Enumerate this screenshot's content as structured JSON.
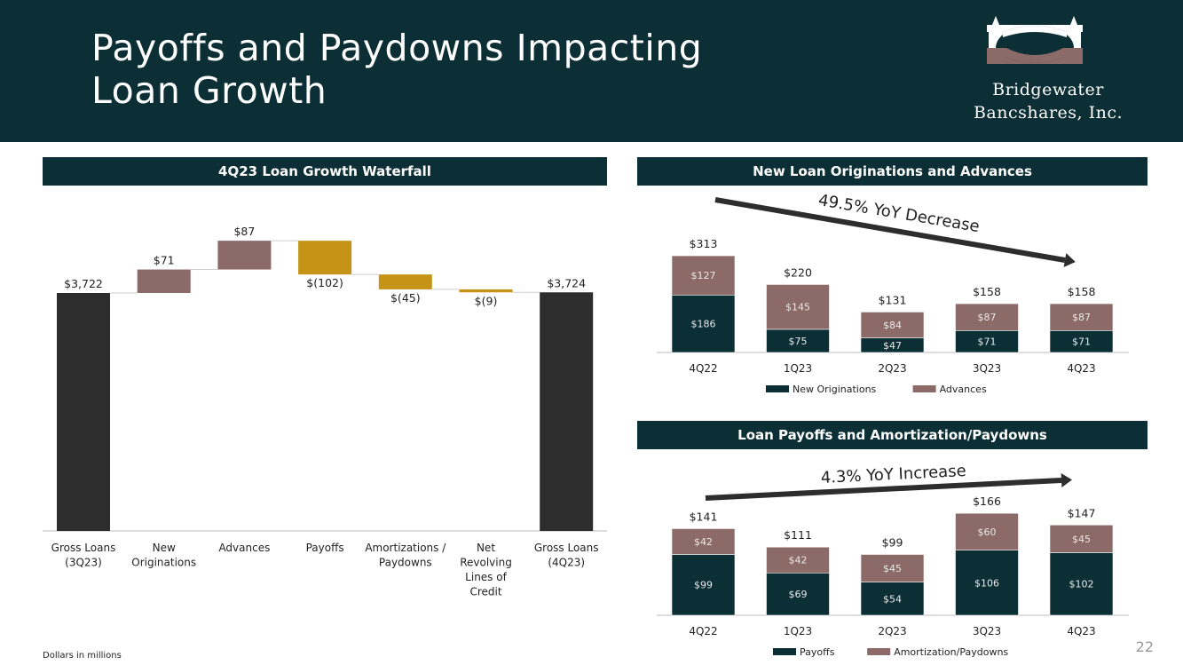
{
  "title_line1": "Payoffs and Paydowns Impacting",
  "title_line2": "Loan Growth",
  "logo": {
    "line1": "Bridgewater",
    "line2": "Bancshares, Inc."
  },
  "footnote": "Dollars in millions",
  "page_number": "22",
  "colors": {
    "navy": "#0c2f36",
    "mauve": "#8c6a67",
    "gold": "#c59316",
    "charcoal": "#2d2d2d"
  },
  "chart_data": [
    {
      "type": "waterfall",
      "title": "4Q23 Loan Growth Waterfall",
      "units": "Dollars in millions",
      "categories": [
        [
          "Gross Loans",
          "(3Q23)"
        ],
        [
          "New",
          "Originations"
        ],
        [
          "Advances"
        ],
        [
          "Payoffs"
        ],
        [
          "Amortizations /",
          "Paydowns"
        ],
        [
          "Net",
          "Revolving",
          "Lines of",
          "Credit"
        ],
        [
          "Gross Loans",
          "(4Q23)"
        ]
      ],
      "steps": [
        {
          "kind": "total",
          "value": 3722,
          "label": "$3,722",
          "color": "charcoal"
        },
        {
          "kind": "delta",
          "value": 71,
          "label": "$71",
          "color": "mauve"
        },
        {
          "kind": "delta",
          "value": 87,
          "label": "$87",
          "color": "mauve"
        },
        {
          "kind": "delta",
          "value": -102,
          "label": "$(102)",
          "color": "gold"
        },
        {
          "kind": "delta",
          "value": -45,
          "label": "$(45)",
          "color": "gold"
        },
        {
          "kind": "delta",
          "value": -9,
          "label": "$(9)",
          "color": "gold"
        },
        {
          "kind": "total",
          "value": 3724,
          "label": "$3,724",
          "color": "charcoal"
        }
      ]
    },
    {
      "type": "bar",
      "stacked": true,
      "title": "New Loan Originations and Advances",
      "annotation": "49.5% YoY Decrease",
      "categories": [
        "4Q22",
        "1Q23",
        "2Q23",
        "3Q23",
        "4Q23"
      ],
      "series": [
        {
          "name": "New Originations",
          "values": [
            186,
            75,
            47,
            71,
            71
          ],
          "labels": [
            "$186",
            "$75",
            "$47",
            "$71",
            "$71"
          ],
          "color": "navy"
        },
        {
          "name": "Advances",
          "values": [
            127,
            145,
            84,
            87,
            87
          ],
          "labels": [
            "$127",
            "$145",
            "$84",
            "$87",
            "$87"
          ],
          "color": "mauve"
        }
      ],
      "totals": [
        313,
        220,
        131,
        158,
        158
      ],
      "total_labels": [
        "$313",
        "$220",
        "$131",
        "$158",
        "$158"
      ]
    },
    {
      "type": "bar",
      "stacked": true,
      "title": "Loan Payoffs and Amortization/Paydowns",
      "annotation": "4.3% YoY Increase",
      "categories": [
        "4Q22",
        "1Q23",
        "2Q23",
        "3Q23",
        "4Q23"
      ],
      "series": [
        {
          "name": "Payoffs",
          "values": [
            99,
            69,
            54,
            106,
            102
          ],
          "labels": [
            "$99",
            "$69",
            "$54",
            "$106",
            "$102"
          ],
          "color": "navy"
        },
        {
          "name": "Amortization/Paydowns",
          "values": [
            42,
            42,
            45,
            60,
            45
          ],
          "labels": [
            "$42",
            "$42",
            "$45",
            "$60",
            "$45"
          ],
          "color": "mauve"
        }
      ],
      "totals": [
        141,
        111,
        99,
        166,
        147
      ],
      "total_labels": [
        "$141",
        "$111",
        "$99",
        "$166",
        "$147"
      ]
    }
  ]
}
